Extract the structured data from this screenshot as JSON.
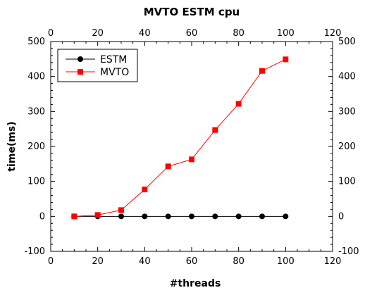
{
  "chart_data": {
    "type": "line",
    "title": "MVTO ESTM cpu",
    "xlabel": "#threads",
    "ylabel": "time(ms)",
    "xlim": [
      0,
      120
    ],
    "ylim": [
      -100,
      500
    ],
    "x_ticks": [
      0,
      20,
      40,
      60,
      80,
      100,
      120
    ],
    "y_ticks": [
      -100,
      0,
      100,
      200,
      300,
      400,
      500
    ],
    "x": [
      10,
      20,
      30,
      40,
      50,
      60,
      70,
      80,
      90,
      100
    ],
    "series": [
      {
        "name": "ESTM",
        "color": "#000000",
        "marker": "circle",
        "values": [
          0,
          0,
          0,
          0,
          0,
          0,
          0,
          0,
          0,
          0
        ]
      },
      {
        "name": "MVTO",
        "color": "#ff0000",
        "marker": "square",
        "values": [
          0,
          4,
          18,
          77,
          143,
          163,
          247,
          322,
          416,
          449
        ]
      }
    ],
    "legend_position": "top-left",
    "grid": false
  }
}
